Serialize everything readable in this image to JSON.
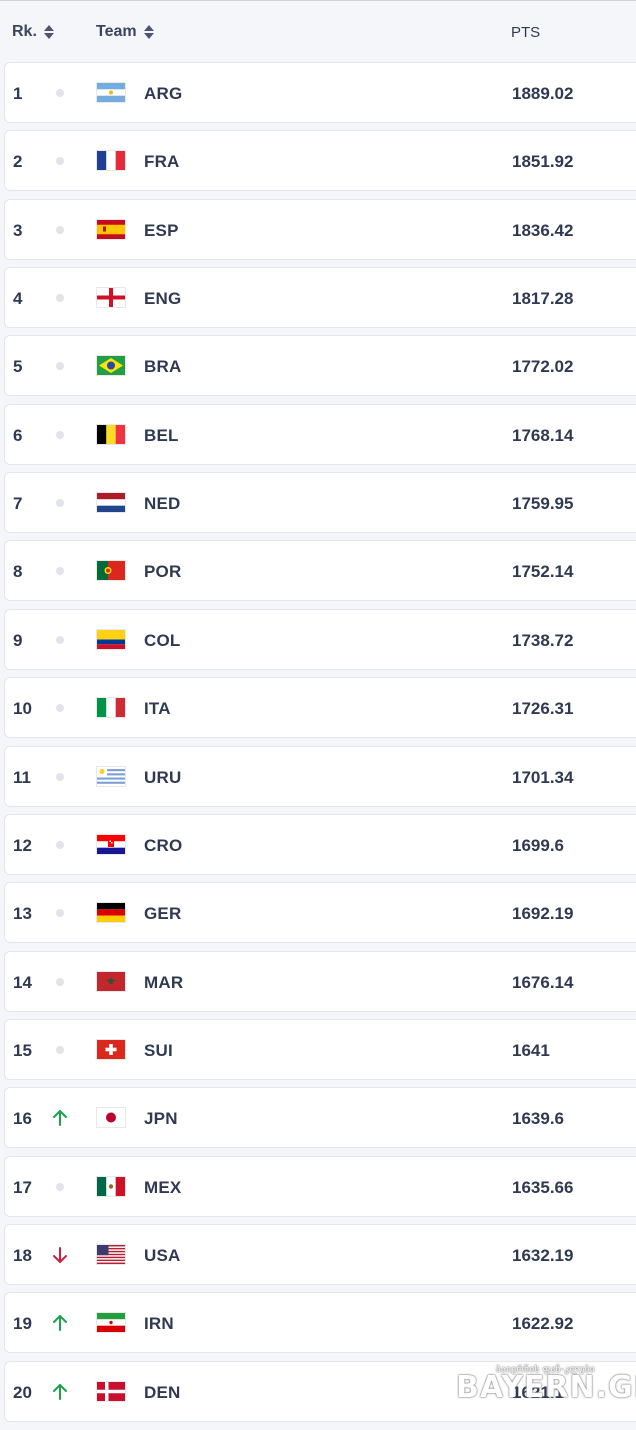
{
  "header": {
    "rank_label": "Rk.",
    "team_label": "Team",
    "pts_label": "PTS"
  },
  "rows": [
    {
      "rank": "1",
      "code": "ARG",
      "flag": "argentina-flag-icon",
      "points": "1889.02",
      "movement": "none"
    },
    {
      "rank": "2",
      "code": "FRA",
      "flag": "france-flag-icon",
      "points": "1851.92",
      "movement": "none"
    },
    {
      "rank": "3",
      "code": "ESP",
      "flag": "spain-flag-icon",
      "points": "1836.42",
      "movement": "none"
    },
    {
      "rank": "4",
      "code": "ENG",
      "flag": "england-flag-icon",
      "points": "1817.28",
      "movement": "none"
    },
    {
      "rank": "5",
      "code": "BRA",
      "flag": "brazil-flag-icon",
      "points": "1772.02",
      "movement": "none"
    },
    {
      "rank": "6",
      "code": "BEL",
      "flag": "belgium-flag-icon",
      "points": "1768.14",
      "movement": "none"
    },
    {
      "rank": "7",
      "code": "NED",
      "flag": "netherlands-flag-icon",
      "points": "1759.95",
      "movement": "none"
    },
    {
      "rank": "8",
      "code": "POR",
      "flag": "portugal-flag-icon",
      "points": "1752.14",
      "movement": "none"
    },
    {
      "rank": "9",
      "code": "COL",
      "flag": "colombia-flag-icon",
      "points": "1738.72",
      "movement": "none"
    },
    {
      "rank": "10",
      "code": "ITA",
      "flag": "italy-flag-icon",
      "points": "1726.31",
      "movement": "none"
    },
    {
      "rank": "11",
      "code": "URU",
      "flag": "uruguay-flag-icon",
      "points": "1701.34",
      "movement": "none"
    },
    {
      "rank": "12",
      "code": "CRO",
      "flag": "croatia-flag-icon",
      "points": "1699.6",
      "movement": "none"
    },
    {
      "rank": "13",
      "code": "GER",
      "flag": "germany-flag-icon",
      "points": "1692.19",
      "movement": "none"
    },
    {
      "rank": "14",
      "code": "MAR",
      "flag": "morocco-flag-icon",
      "points": "1676.14",
      "movement": "none"
    },
    {
      "rank": "15",
      "code": "SUI",
      "flag": "switzerland-flag-icon",
      "points": "1641",
      "movement": "none"
    },
    {
      "rank": "16",
      "code": "JPN",
      "flag": "japan-flag-icon",
      "points": "1639.6",
      "movement": "up"
    },
    {
      "rank": "17",
      "code": "MEX",
      "flag": "mexico-flag-icon",
      "points": "1635.66",
      "movement": "none"
    },
    {
      "rank": "18",
      "code": "USA",
      "flag": "usa-flag-icon",
      "points": "1632.19",
      "movement": "down"
    },
    {
      "rank": "19",
      "code": "IRN",
      "flag": "iran-flag-icon",
      "points": "1622.92",
      "movement": "up"
    },
    {
      "rank": "20",
      "code": "DEN",
      "flag": "denmark-flag-icon",
      "points": "1621.1",
      "movement": "up"
    }
  ],
  "colors": {
    "up": "#1aa34a",
    "down": "#d11f3a",
    "neutral_dot": "#e1e4ea"
  },
  "watermark": {
    "top_text": "ბაიერნის ფან-კლუბი",
    "main_text": "BAYERN.GE"
  }
}
